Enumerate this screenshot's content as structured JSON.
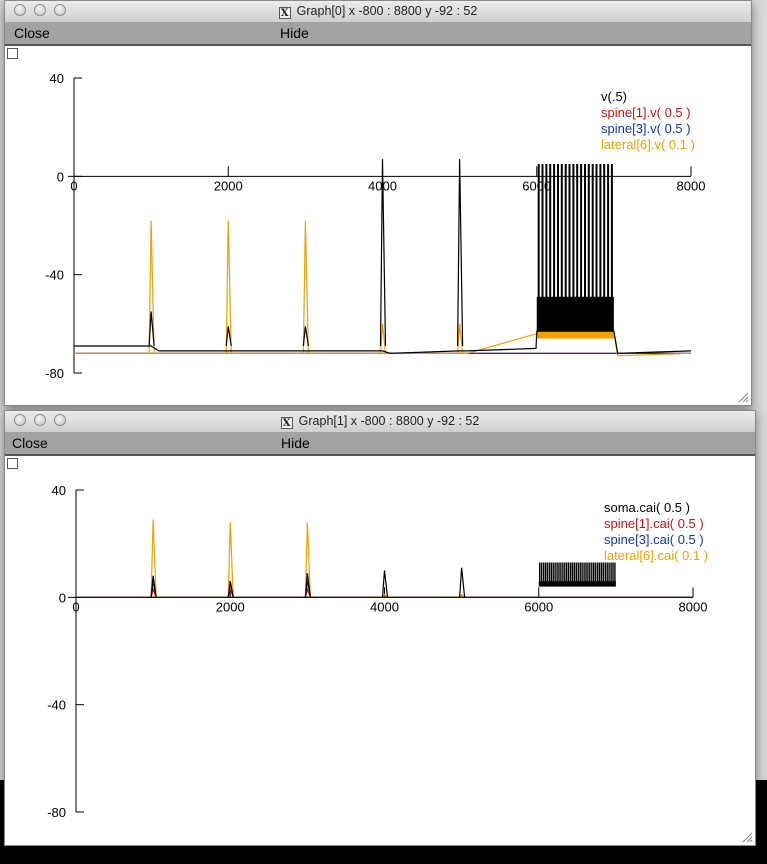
{
  "windows": [
    {
      "id": "graph0",
      "title": "Graph[0]  x -800 : 8800  y -92 : 52",
      "close_label": "Close",
      "hide_label": "Hide",
      "y_ticks": [
        "40",
        "0",
        "-40",
        "-80"
      ],
      "x_ticks": [
        "0",
        "2000",
        "4000",
        "6000",
        "8000"
      ],
      "legend": [
        {
          "text": "v(.5)",
          "color": "#000000"
        },
        {
          "text": "spine[1].v( 0.5 )",
          "color": "#cc1111"
        },
        {
          "text": "spine[3].v( 0.5 )",
          "color": "#1133aa"
        },
        {
          "text": "lateral[6].v( 0.1 )",
          "color": "#f0a000"
        }
      ]
    },
    {
      "id": "graph1",
      "title": "Graph[1]  x -800 : 8800  y -92 : 52",
      "close_label": "Close",
      "hide_label": "Hide",
      "y_ticks": [
        "40",
        "0",
        "-40",
        "-80"
      ],
      "x_ticks": [
        "0",
        "2000",
        "4000",
        "6000",
        "8000"
      ],
      "legend": [
        {
          "text": "soma.cai( 0.5 )",
          "color": "#000000"
        },
        {
          "text": "spine[1].cai( 0.5 )",
          "color": "#cc1111"
        },
        {
          "text": "spine[3].cai( 0.5 )",
          "color": "#1133aa"
        },
        {
          "text": "lateral[6].cai( 0.1 )",
          "color": "#f0a000"
        }
      ]
    }
  ],
  "chart_data": [
    {
      "type": "line",
      "xlim": [
        -800,
        8800
      ],
      "ylim": [
        -92,
        52
      ],
      "x_ticks": [
        0,
        2000,
        4000,
        6000,
        8000
      ],
      "y_ticks": [
        40,
        0,
        -40,
        -80
      ],
      "series": [
        {
          "name": "v(.5)",
          "color": "#000000",
          "baseline_points": [
            [
              0,
              -69
            ],
            [
              1000,
              -69
            ],
            [
              1100,
              -71
            ],
            [
              2000,
              -71
            ],
            [
              2100,
              -71
            ],
            [
              3000,
              -71
            ],
            [
              3100,
              -71
            ],
            [
              4000,
              -71
            ],
            [
              4100,
              -72
            ],
            [
              5000,
              -71
            ],
            [
              5100,
              -71
            ],
            [
              5990,
              -70
            ],
            [
              6000,
              -63
            ],
            [
              7000,
              -63
            ],
            [
              7050,
              -72
            ],
            [
              8000,
              -71
            ]
          ],
          "spikes": [
            [
              1000,
              -55
            ],
            [
              2000,
              -61
            ],
            [
              3000,
              -61
            ],
            [
              4000,
              7
            ],
            [
              5000,
              7
            ]
          ],
          "burst": {
            "start": 6000,
            "end": 7000,
            "count": 20,
            "peak": 5,
            "trough": -57
          }
        },
        {
          "name": "spine[1].v( 0.5 )",
          "color": "#cc1111",
          "baseline_points": [
            [
              0,
              -72
            ],
            [
              8000,
              -72
            ]
          ]
        },
        {
          "name": "spine[3].v( 0.5 )",
          "color": "#1133aa",
          "baseline_points": [
            [
              0,
              -72
            ],
            [
              8000,
              -72
            ]
          ]
        },
        {
          "name": "lateral[6].v( 0.1 )",
          "color": "#f0a000",
          "baseline_points": [
            [
              0,
              -72
            ],
            [
              1000,
              -72
            ],
            [
              1100,
              -72
            ],
            [
              2000,
              -72
            ],
            [
              2100,
              -72
            ],
            [
              3000,
              -72
            ],
            [
              3100,
              -72
            ],
            [
              4000,
              -72
            ],
            [
              4100,
              -72
            ],
            [
              5000,
              -72
            ],
            [
              5100,
              -72
            ],
            [
              6000,
              -64
            ],
            [
              7000,
              -64
            ],
            [
              7050,
              -73
            ],
            [
              8000,
              -72
            ]
          ],
          "spikes": [
            [
              1000,
              -18
            ],
            [
              2000,
              -18
            ],
            [
              3000,
              -18
            ],
            [
              4000,
              -60
            ],
            [
              5000,
              -60
            ]
          ],
          "band": {
            "start": 6000,
            "end": 7000,
            "top": -62,
            "bottom": -66
          }
        }
      ]
    },
    {
      "type": "line",
      "xlim": [
        -800,
        8800
      ],
      "ylim": [
        -92,
        52
      ],
      "x_ticks": [
        0,
        2000,
        4000,
        6000,
        8000
      ],
      "y_ticks": [
        40,
        0,
        -40,
        -80
      ],
      "series": [
        {
          "name": "soma.cai( 0.5 )",
          "color": "#000000",
          "baseline_points": [
            [
              0,
              0
            ],
            [
              8000,
              0
            ]
          ],
          "spikes": [
            [
              1000,
              8
            ],
            [
              2000,
              6
            ],
            [
              3000,
              9
            ],
            [
              4000,
              10
            ],
            [
              5000,
              11
            ]
          ],
          "burst": {
            "start": 6000,
            "end": 7000,
            "count": 40,
            "peak": 13,
            "trough": 5
          }
        },
        {
          "name": "spine[1].cai( 0.5 )",
          "color": "#cc1111",
          "baseline_points": [
            [
              0,
              0
            ],
            [
              8000,
              0
            ]
          ],
          "spikes": [
            [
              1000,
              3
            ],
            [
              2000,
              3
            ],
            [
              3000,
              3
            ]
          ]
        },
        {
          "name": "spine[3].cai( 0.5 )",
          "color": "#1133aa",
          "baseline_points": [
            [
              0,
              0
            ],
            [
              8000,
              0
            ]
          ],
          "spikes": [
            [
              1000,
              6
            ],
            [
              2000,
              6
            ],
            [
              3000,
              6
            ]
          ]
        },
        {
          "name": "lateral[6].cai( 0.1 )",
          "color": "#f0a000",
          "baseline_points": [
            [
              0,
              0
            ],
            [
              8000,
              0
            ]
          ],
          "spikes": [
            [
              1000,
              29
            ],
            [
              2000,
              28
            ],
            [
              3000,
              28
            ],
            [
              4000,
              1
            ],
            [
              5000,
              1
            ]
          ]
        }
      ]
    }
  ]
}
